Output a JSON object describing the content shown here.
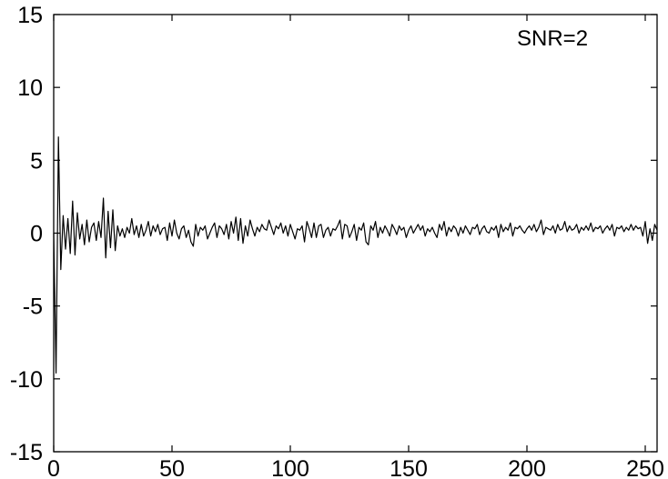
{
  "chart_data": {
    "type": "line",
    "title": "",
    "xlabel": "",
    "ylabel": "",
    "xlim": [
      0,
      255
    ],
    "ylim": [
      -15,
      15
    ],
    "x_ticks": [
      0,
      50,
      100,
      150,
      200,
      250
    ],
    "y_ticks": [
      -15,
      -10,
      -5,
      0,
      5,
      10,
      15
    ],
    "x_tick_labels": [
      "0",
      "50",
      "100",
      "150",
      "200",
      "250"
    ],
    "y_tick_labels": [
      "-15",
      "-10",
      "-5",
      "0",
      "5",
      "10",
      "15"
    ],
    "grid": false,
    "annotation": "SNR=2",
    "series": [
      {
        "color": "#000000",
        "x_start": 0,
        "x_step": 1,
        "values": [
          0.0,
          -9.6,
          6.6,
          -2.5,
          1.2,
          -1.1,
          1.0,
          -1.4,
          2.2,
          -1.5,
          1.4,
          -0.4,
          0.6,
          -0.8,
          0.9,
          -0.6,
          0.4,
          0.7,
          -0.5,
          0.8,
          -0.3,
          2.4,
          -1.7,
          1.5,
          -1.0,
          1.6,
          -1.2,
          0.5,
          -0.2,
          0.3,
          -0.3,
          0.4,
          0.0,
          1.0,
          -0.1,
          0.5,
          -0.3,
          0.6,
          -0.2,
          0.2,
          0.8,
          -0.2,
          0.5,
          0.1,
          0.6,
          -0.1,
          0.3,
          0.4,
          -0.5,
          0.7,
          -0.2,
          0.9,
          0.0,
          -0.4,
          0.3,
          0.5,
          -0.3,
          0.2,
          -0.6,
          -0.9,
          0.6,
          -0.2,
          0.4,
          0.2,
          0.5,
          -0.4,
          0.0,
          0.4,
          0.7,
          -0.3,
          0.5,
          0.3,
          -0.1,
          0.6,
          -0.4,
          0.8,
          0.0,
          1.1,
          -0.5,
          1.0,
          -0.7,
          0.5,
          -0.2,
          0.9,
          0.3,
          -0.2,
          0.4,
          0.1,
          0.6,
          0.3,
          0.2,
          0.9,
          0.4,
          -0.1,
          0.5,
          0.3,
          0.7,
          0.0,
          0.5,
          -0.2,
          0.6,
          0.1,
          -0.4,
          0.3,
          0.2,
          0.5,
          -0.6,
          0.8,
          0.3,
          -0.3,
          0.7,
          -0.3,
          0.5,
          0.6,
          -0.3,
          0.2,
          0.4,
          -0.2,
          0.3,
          0.2,
          0.5,
          0.9,
          -0.4,
          0.6,
          0.5,
          -0.3,
          0.1,
          0.6,
          -0.5,
          0.4,
          0.2,
          0.7,
          -0.6,
          -0.8,
          0.5,
          0.2,
          0.8,
          -0.3,
          0.4,
          0.0,
          0.5,
          0.2,
          -0.2,
          0.6,
          0.3,
          -0.1,
          0.5,
          0.2,
          0.4,
          -0.3,
          0.2,
          0.5,
          0.0,
          0.3,
          0.6,
          0.2,
          0.5,
          -0.2,
          0.3,
          0.1,
          0.4,
          0.0,
          -0.3,
          0.6,
          0.2,
          0.8,
          -0.2,
          0.4,
          0.1,
          0.5,
          0.3,
          -0.2,
          0.4,
          0.0,
          0.5,
          0.2,
          -0.1,
          0.4,
          0.3,
          0.6,
          -0.1,
          0.3,
          0.5,
          0.1,
          0.0,
          0.4,
          0.2,
          0.5,
          -0.3,
          0.6,
          0.1,
          0.4,
          0.2,
          0.7,
          -0.2,
          0.4,
          0.3,
          0.5,
          0.2,
          0.0,
          0.3,
          0.5,
          0.2,
          0.6,
          0.1,
          0.4,
          0.9,
          -0.1,
          0.4,
          0.3,
          0.2,
          0.5,
          0.0,
          0.6,
          0.2,
          0.3,
          0.8,
          0.1,
          0.5,
          0.2,
          0.3,
          0.6,
          0.0,
          0.4,
          0.2,
          0.5,
          0.2,
          0.7,
          0.1,
          0.4,
          0.3,
          0.5,
          0.0,
          0.3,
          0.5,
          0.2,
          0.6,
          -0.2,
          0.4,
          0.3,
          0.5,
          0.1,
          0.4,
          0.2,
          0.6,
          0.2,
          0.5,
          0.3,
          0.4,
          -0.2,
          0.8,
          -0.7,
          0.3,
          -0.5,
          0.6,
          0.2
        ]
      }
    ]
  }
}
